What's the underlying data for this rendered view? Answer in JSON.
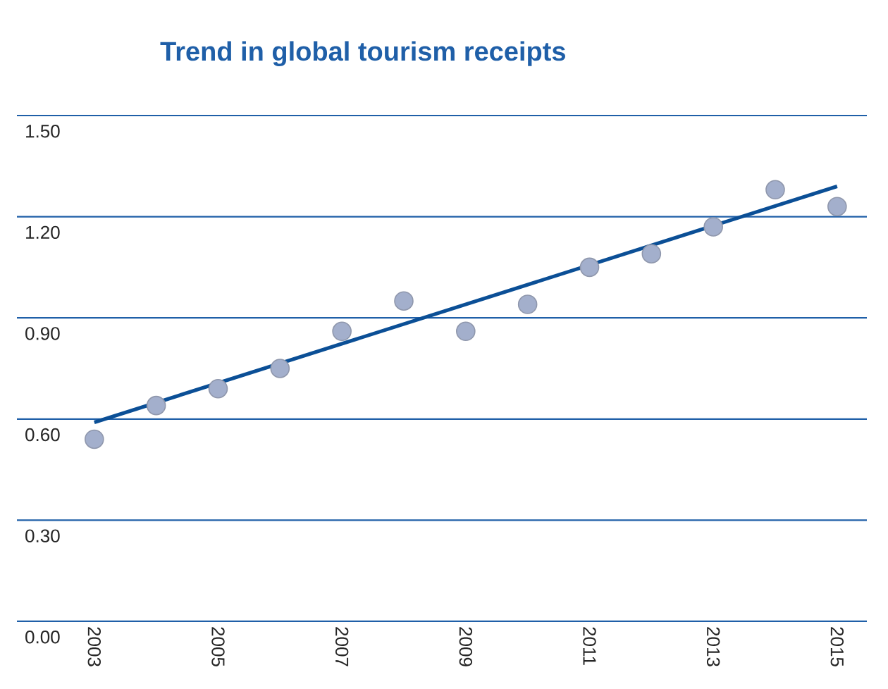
{
  "chart_data": {
    "type": "scatter",
    "title": "Trend in global tourism receipts",
    "x": [
      2003,
      2004,
      2005,
      2006,
      2007,
      2008,
      2009,
      2010,
      2011,
      2012,
      2013,
      2014,
      2015
    ],
    "series": [
      {
        "color": "#a3afcc",
        "marker": "circle",
        "values": [
          0.54,
          0.64,
          0.69,
          0.75,
          0.86,
          0.95,
          0.86,
          0.94,
          1.05,
          1.09,
          1.17,
          1.28,
          1.23
        ]
      },
      {
        "type": "line",
        "color": "#0b4f96",
        "line_style": "solid",
        "marker": "none",
        "x": [
          2003,
          2015
        ],
        "values": [
          0.59,
          1.29
        ]
      }
    ],
    "xlim": [
      2001.75,
      2015.48
    ],
    "ylim": [
      0,
      1.5
    ],
    "xticks": [
      2003,
      2005,
      2007,
      2009,
      2011,
      2013,
      2015
    ],
    "yticks": [
      {
        "value": 0,
        "label": "0.00"
      },
      {
        "value": 0.3,
        "label": "0.30"
      },
      {
        "value": 0.6,
        "label": "0.60"
      },
      {
        "value": 0.9,
        "label": "0.90"
      },
      {
        "value": 1.2,
        "label": "1.20"
      },
      {
        "value": 1.5,
        "label": "1.50"
      }
    ],
    "grid": "y"
  }
}
